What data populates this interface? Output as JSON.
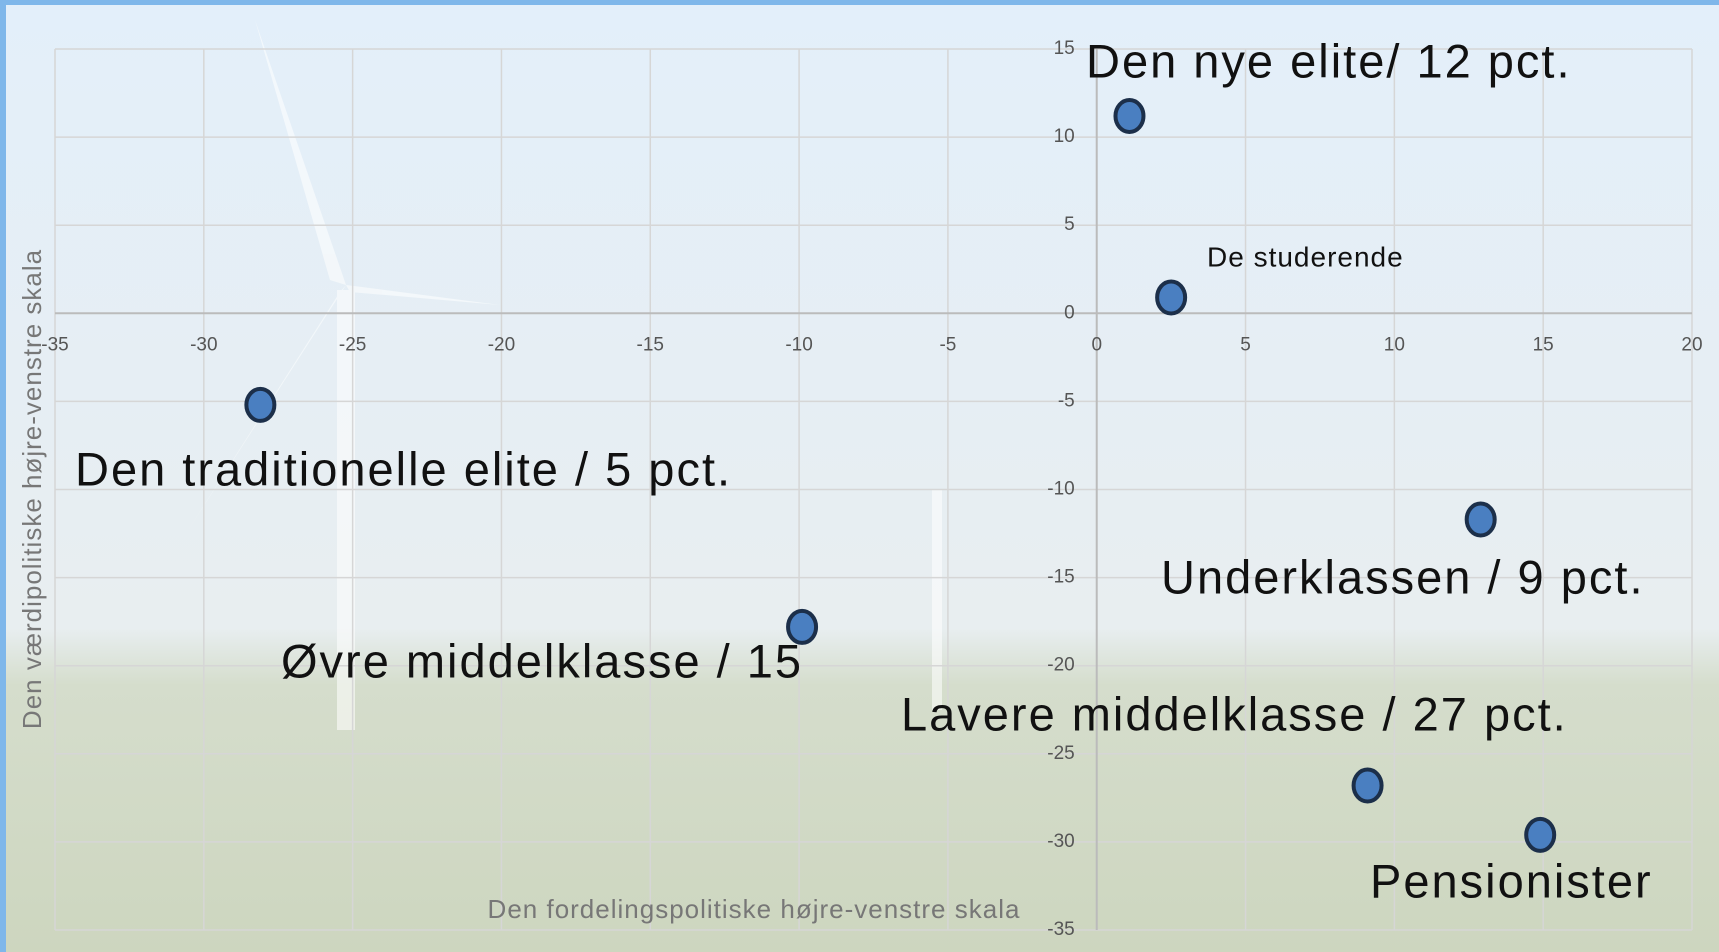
{
  "chart_data": {
    "type": "scatter",
    "x_label": "Den fordelingspolitiske højre-venstre skala",
    "y_label": "Den værdipolitiske højre-venstre skala",
    "labels": [
      "Den nye elite/ 12 pct.",
      "De studerende",
      "Den traditionelle elite / 5 pct.",
      "Øvre middelklasse / 15",
      "Underklassen / 9 pct.",
      "Lavere middelklasse / 27 pct.",
      "Pensionister"
    ],
    "x": [
      1.1,
      2.5,
      -28.1,
      -9.9,
      12.9,
      9.1,
      14.9
    ],
    "values": [
      11.2,
      0.9,
      -5.2,
      -17.8,
      -11.7,
      -26.8,
      -29.6
    ],
    "color": "#4a7fc1",
    "xlim": [
      -35,
      20
    ],
    "xticks": [
      -35,
      -30,
      -25,
      -20,
      -15,
      -10,
      -5,
      0,
      5,
      10,
      15,
      20
    ],
    "ylim": [
      -35,
      15
    ],
    "yticks": [
      -35,
      -30,
      -25,
      -20,
      -15,
      -10,
      -5,
      0,
      5,
      10,
      15
    ],
    "grid": true
  }
}
